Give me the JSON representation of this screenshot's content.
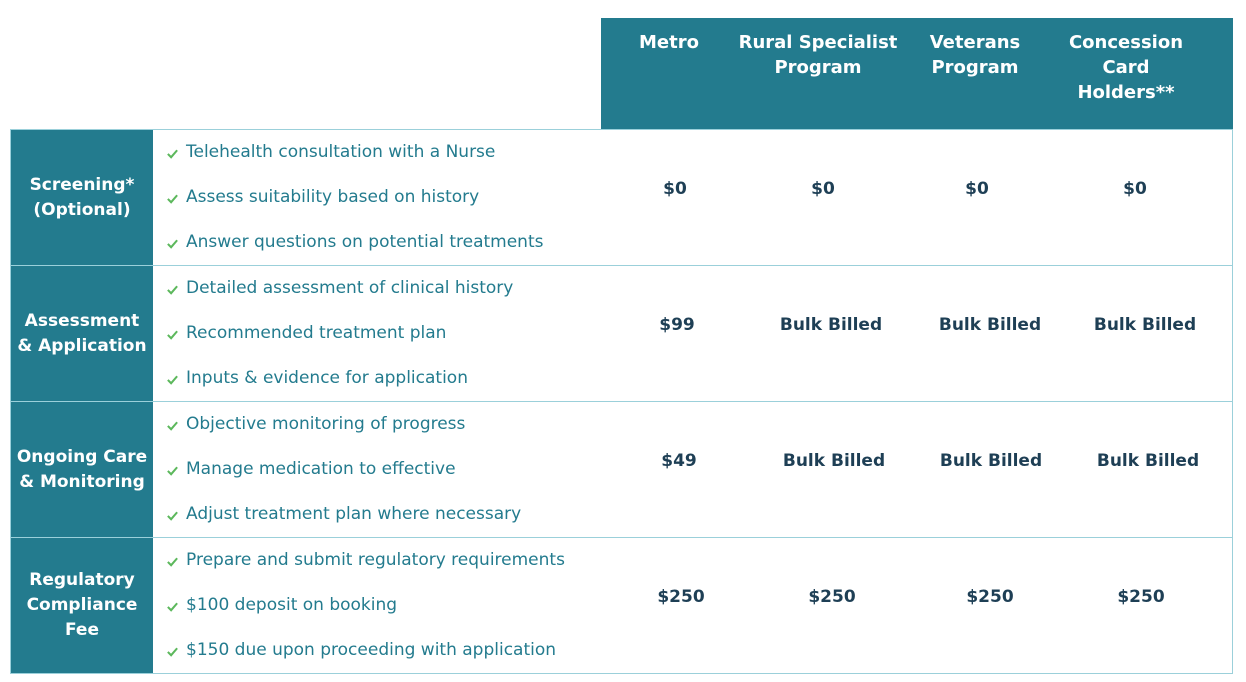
{
  "columns": [
    "Metro",
    "Rural Specialist\nProgram",
    "Veterans\nProgram",
    "Concession\nCard\nHolders**"
  ],
  "rows": [
    {
      "label": "Screening*\n(Optional)",
      "features": [
        "Telehealth consultation with a Nurse",
        "Assess suitability based on history",
        "Answer questions on potential treatments"
      ],
      "prices": [
        "$0",
        "$0",
        "$0",
        "$0"
      ]
    },
    {
      "label": "Assessment\n& Application",
      "features": [
        "Detailed assessment of clinical history",
        "Recommended treatment plan",
        "Inputs & evidence for application"
      ],
      "prices": [
        "$99",
        "Bulk Billed",
        "Bulk Billed",
        "Bulk Billed"
      ]
    },
    {
      "label": "Ongoing Care\n& Monitoring",
      "features": [
        "Objective monitoring of progress",
        "Manage medication to effective",
        "Adjust treatment plan where necessary"
      ],
      "prices": [
        "$49",
        "Bulk Billed",
        "Bulk Billed",
        "Bulk Billed"
      ]
    },
    {
      "label": "Regulatory\nCompliance\nFee",
      "features": [
        "Prepare and submit regulatory requirements",
        "$100 deposit on booking",
        "$150 due upon proceeding with application"
      ],
      "prices": [
        "$250",
        "$250",
        "$250",
        "$250"
      ]
    }
  ],
  "icons": {
    "feature_bullet": "check-icon"
  },
  "colors": {
    "header_bg": "#237b8e",
    "feature_text": "#237b8e",
    "check": "#5cb85c",
    "price_text": "#1e3f55",
    "row_border": "#9bd0da"
  }
}
